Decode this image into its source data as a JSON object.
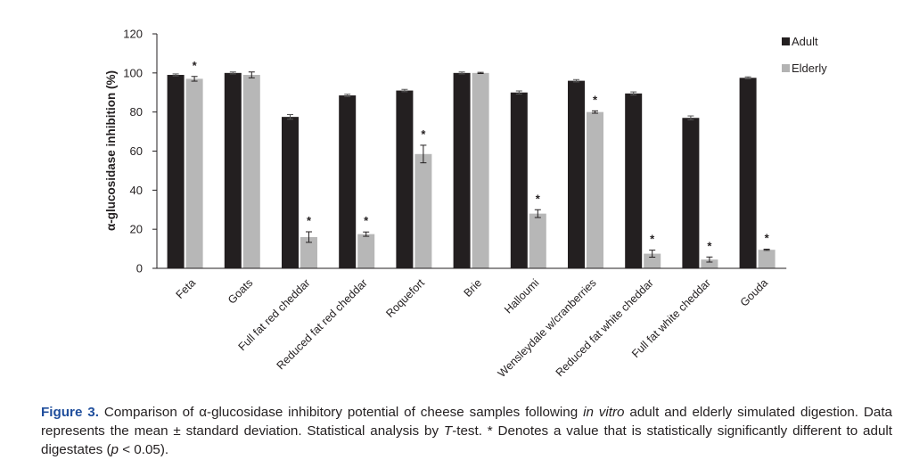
{
  "chart_data": {
    "type": "bar",
    "ylabel": "α-glucosidase inhibition (%)",
    "ylim": [
      0,
      120
    ],
    "yticks": [
      0,
      20,
      40,
      60,
      80,
      100,
      120
    ],
    "grid": false,
    "legend_position": "top-right",
    "significance_marker": "*",
    "categories": [
      "Feta",
      "Goats",
      "Full fat red cheddar",
      "Reduced fat red cheddar",
      "Roquefort",
      "Brie",
      "Halloumi",
      "Wensleydale w/cranberries",
      "Reduced fat white cheddar",
      "Full fat white cheddar",
      "Gouda"
    ],
    "series": [
      {
        "name": "Adult",
        "color": "#231f20",
        "values": [
          99,
          100,
          77.5,
          88.5,
          91,
          100,
          90,
          96,
          89.5,
          77,
          97.5
        ],
        "errors": [
          0.5,
          0.5,
          1.2,
          0.6,
          0.6,
          0.5,
          0.8,
          0.6,
          0.8,
          1.0,
          0.5
        ],
        "significant": [
          false,
          false,
          false,
          false,
          false,
          false,
          false,
          false,
          false,
          false,
          false
        ]
      },
      {
        "name": "Elderly",
        "color": "#b3b3b3",
        "values": [
          97,
          99,
          16,
          17.5,
          58.5,
          100,
          28,
          80,
          7.5,
          4.5,
          9.5
        ],
        "errors": [
          1.2,
          1.5,
          2.7,
          1.1,
          4.5,
          0.3,
          2.0,
          0.6,
          1.8,
          1.3,
          0.3
        ],
        "significant": [
          true,
          false,
          true,
          true,
          true,
          false,
          true,
          true,
          true,
          true,
          true
        ]
      }
    ]
  },
  "caption": {
    "label": "Figure 3.",
    "text_part1": "Comparison of α-glucosidase inhibitory potential of cheese samples following ",
    "text_italic1": "in vitro",
    "text_part2": " adult and elderly simulated digestion. Data represents the mean ± standard deviation. Statistical analysis by ",
    "text_italic2": "T",
    "text_part3": "-test. * Denotes a value that is statistically significantly different to adult digestates (",
    "text_italic3": "p",
    "text_part4": " < 0.05)."
  }
}
